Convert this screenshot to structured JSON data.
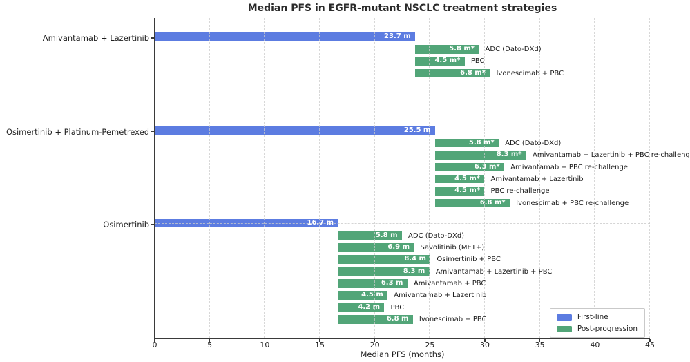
{
  "chart_data": {
    "type": "bar",
    "orientation": "horizontal",
    "title": "Median PFS in EGFR-mutant NSCLC treatment strategies",
    "xlabel": "Median PFS (months)",
    "xlim": [
      0,
      45
    ],
    "xticks": [
      0,
      5,
      10,
      15,
      20,
      25,
      30,
      35,
      40,
      45
    ],
    "grid": "dashed",
    "legend_position": "lower right",
    "colors": {
      "first_line": "#5C7CE1",
      "post_progression": "#52A578"
    },
    "legend": [
      {
        "key": "first_line",
        "label": "First-line"
      },
      {
        "key": "post_progression",
        "label": "Post-progression"
      }
    ],
    "groups": [
      {
        "name": "Amivantamab + Lazertinib",
        "first_line": {
          "months": 23.7,
          "label": "23.7 m"
        },
        "post_progression": [
          {
            "months": 5.8,
            "label": "5.8 m*",
            "treatment": "ADC (Dato-DXd)"
          },
          {
            "months": 4.5,
            "label": "4.5 m*",
            "treatment": "PBC"
          },
          {
            "months": 6.8,
            "label": "6.8 m*",
            "treatment": "Ivonescimab + PBC"
          }
        ]
      },
      {
        "name": "Osimertinib + Platinum-Pemetrexed",
        "first_line": {
          "months": 25.5,
          "label": "25.5 m"
        },
        "post_progression": [
          {
            "months": 5.8,
            "label": "5.8 m*",
            "treatment": "ADC (Dato-DXd)"
          },
          {
            "months": 8.3,
            "label": "8.3 m*",
            "treatment": "Amivantamab + Lazertinib + PBC re-challenge"
          },
          {
            "months": 6.3,
            "label": "6.3 m*",
            "treatment": "Amivantamab + PBC re-challenge"
          },
          {
            "months": 4.5,
            "label": "4.5 m*",
            "treatment": "Amivantamab + Lazertinib"
          },
          {
            "months": 4.5,
            "label": "4.5 m*",
            "treatment": "PBC re-challenge"
          },
          {
            "months": 6.8,
            "label": "6.8 m*",
            "treatment": "Ivonescimab + PBC re-challenge"
          }
        ]
      },
      {
        "name": "Osimertinib",
        "first_line": {
          "months": 16.7,
          "label": "16.7 m"
        },
        "post_progression": [
          {
            "months": 5.8,
            "label": "5.8 m",
            "treatment": "ADC (Dato-DXd)"
          },
          {
            "months": 6.9,
            "label": "6.9 m",
            "treatment": "Savolitinib (MET+)"
          },
          {
            "months": 8.4,
            "label": "8.4 m",
            "treatment": "Osimertinib + PBC"
          },
          {
            "months": 8.3,
            "label": "8.3 m",
            "treatment": "Amivantamab + Lazertinib + PBC"
          },
          {
            "months": 6.3,
            "label": "6.3 m",
            "treatment": "Amivantamab + PBC"
          },
          {
            "months": 4.5,
            "label": "4.5 m",
            "treatment": "Amivantamab + Lazertinib"
          },
          {
            "months": 4.2,
            "label": "4.2 m",
            "treatment": "PBC"
          },
          {
            "months": 6.8,
            "label": "6.8 m",
            "treatment": "Ivonescimab + PBC"
          }
        ]
      }
    ]
  }
}
